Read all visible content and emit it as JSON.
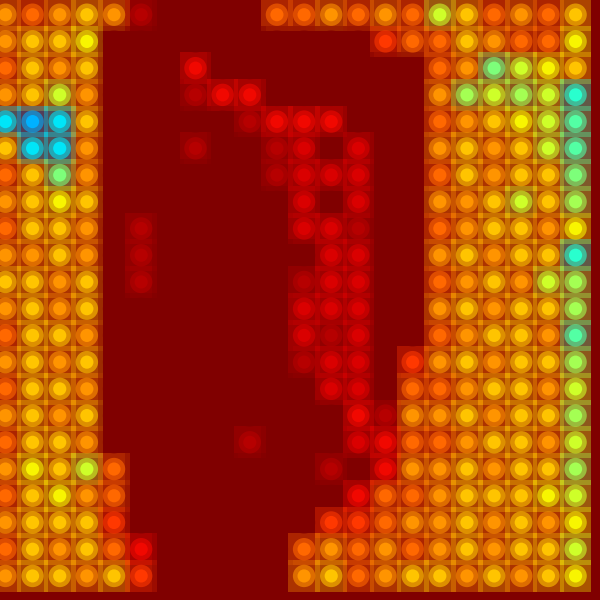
{
  "chart_data": {
    "type": "heatmap",
    "tick_labels": false,
    "color_range": [
      0,
      1
    ],
    "cells": [
      [
        0.75,
        0.8,
        0.75,
        0.7,
        0.75,
        0.95,
        1,
        1,
        1,
        1,
        0.8,
        0.8,
        0.75,
        0.8,
        0.75,
        0.8,
        0.6,
        0.7,
        0.8,
        0.75,
        0.8,
        0.7
      ],
      [
        0.75,
        0.7,
        0.7,
        0.65,
        1,
        1,
        1,
        1,
        1,
        1,
        1,
        1,
        1,
        1,
        0.85,
        0.8,
        0.8,
        0.7,
        0.75,
        0.8,
        0.8,
        0.65
      ],
      [
        0.8,
        0.7,
        0.75,
        0.7,
        1,
        1,
        1,
        0.9,
        1,
        1,
        1,
        1,
        1,
        1,
        1,
        1,
        0.8,
        0.75,
        0.5,
        0.6,
        0.65,
        0.7
      ],
      [
        0.75,
        0.7,
        0.6,
        0.75,
        1,
        1,
        1,
        0.95,
        0.9,
        0.9,
        1,
        1,
        1,
        1,
        1,
        1,
        0.75,
        0.55,
        0.6,
        0.55,
        0.6,
        0.4
      ],
      [
        0.35,
        0.3,
        0.35,
        0.7,
        1,
        1,
        1,
        1,
        1,
        0.95,
        0.9,
        0.9,
        0.9,
        1,
        1,
        1,
        0.8,
        0.75,
        0.7,
        0.65,
        0.6,
        0.45
      ],
      [
        0.7,
        0.35,
        0.35,
        0.75,
        1,
        1,
        1,
        0.95,
        1,
        1,
        0.95,
        0.92,
        1,
        0.92,
        1,
        1,
        0.75,
        0.7,
        0.75,
        0.7,
        0.6,
        0.45
      ],
      [
        0.8,
        0.7,
        0.5,
        0.75,
        1,
        1,
        1,
        1,
        1,
        1,
        0.95,
        0.92,
        0.92,
        0.92,
        1,
        1,
        0.8,
        0.7,
        0.75,
        0.7,
        0.7,
        0.5
      ],
      [
        0.75,
        0.7,
        0.65,
        0.7,
        1,
        1,
        1,
        1,
        1,
        1,
        1,
        0.92,
        1,
        0.92,
        1,
        1,
        0.75,
        0.75,
        0.7,
        0.6,
        0.7,
        0.55
      ],
      [
        0.8,
        0.7,
        0.7,
        0.75,
        1,
        0.95,
        1,
        1,
        1,
        1,
        1,
        0.92,
        0.92,
        0.95,
        1,
        1,
        0.8,
        0.75,
        0.7,
        0.7,
        0.75,
        0.65
      ],
      [
        0.75,
        0.75,
        0.7,
        0.75,
        1,
        0.95,
        1,
        1,
        1,
        1,
        1,
        1,
        0.92,
        0.92,
        1,
        1,
        0.75,
        0.7,
        0.75,
        0.7,
        0.7,
        0.4
      ],
      [
        0.7,
        0.7,
        0.75,
        0.7,
        1,
        0.95,
        1,
        1,
        1,
        1,
        1,
        0.95,
        0.92,
        0.92,
        1,
        1,
        0.8,
        0.75,
        0.7,
        0.75,
        0.6,
        0.55
      ],
      [
        0.75,
        0.7,
        0.75,
        0.7,
        1,
        1,
        1,
        1,
        1,
        1,
        1,
        0.92,
        0.92,
        0.92,
        1,
        1,
        0.75,
        0.7,
        0.75,
        0.7,
        0.7,
        0.55
      ],
      [
        0.8,
        0.7,
        0.7,
        0.75,
        1,
        1,
        1,
        1,
        1,
        1,
        1,
        0.92,
        0.95,
        0.92,
        1,
        1,
        0.8,
        0.75,
        0.7,
        0.7,
        0.75,
        0.45
      ],
      [
        0.75,
        0.7,
        0.75,
        0.7,
        1,
        1,
        1,
        1,
        1,
        1,
        1,
        0.95,
        0.92,
        0.92,
        1,
        0.85,
        0.75,
        0.7,
        0.75,
        0.7,
        0.7,
        0.55
      ],
      [
        0.8,
        0.7,
        0.7,
        0.75,
        1,
        1,
        1,
        1,
        1,
        1,
        1,
        1,
        0.92,
        0.92,
        1,
        0.8,
        0.8,
        0.75,
        0.7,
        0.7,
        0.75,
        0.6
      ],
      [
        0.75,
        0.7,
        0.75,
        0.7,
        1,
        1,
        1,
        1,
        1,
        1,
        1,
        1,
        1,
        0.9,
        0.95,
        0.75,
        0.75,
        0.7,
        0.75,
        0.7,
        0.7,
        0.55
      ],
      [
        0.8,
        0.7,
        0.7,
        0.75,
        1,
        1,
        1,
        1,
        1,
        0.95,
        1,
        1,
        1,
        0.92,
        0.9,
        0.8,
        0.8,
        0.75,
        0.7,
        0.7,
        0.75,
        0.6
      ],
      [
        0.75,
        0.65,
        0.7,
        0.6,
        0.8,
        1,
        1,
        1,
        1,
        1,
        1,
        1,
        0.95,
        1,
        0.9,
        0.75,
        0.75,
        0.7,
        0.75,
        0.7,
        0.7,
        0.55
      ],
      [
        0.8,
        0.7,
        0.65,
        0.75,
        0.8,
        1,
        1,
        1,
        1,
        1,
        1,
        1,
        1,
        0.9,
        0.8,
        0.8,
        0.75,
        0.7,
        0.7,
        0.7,
        0.65,
        0.6
      ],
      [
        0.75,
        0.7,
        0.7,
        0.7,
        0.85,
        1,
        1,
        1,
        1,
        1,
        1,
        1,
        0.85,
        0.85,
        0.8,
        0.75,
        0.75,
        0.7,
        0.75,
        0.7,
        0.75,
        0.65
      ],
      [
        0.8,
        0.7,
        0.75,
        0.7,
        0.8,
        0.9,
        1,
        1,
        1,
        1,
        1,
        0.8,
        0.75,
        0.8,
        0.75,
        0.8,
        0.75,
        0.7,
        0.75,
        0.7,
        0.7,
        0.6
      ],
      [
        0.75,
        0.7,
        0.7,
        0.75,
        0.7,
        0.85,
        1,
        1,
        1,
        1,
        1,
        0.75,
        0.7,
        0.8,
        0.75,
        0.7,
        0.7,
        0.75,
        0.7,
        0.75,
        0.7,
        0.65
      ]
    ]
  }
}
